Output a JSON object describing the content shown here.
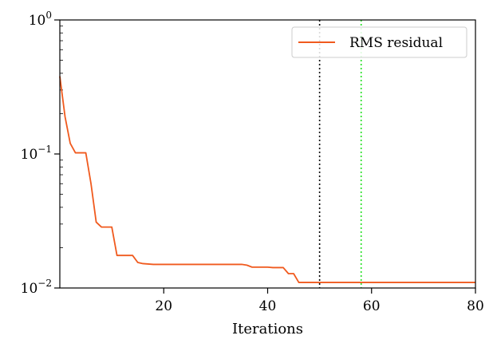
{
  "chart_data": {
    "type": "line",
    "title": "",
    "xlabel": "Iterations",
    "ylabel": "",
    "xlim": [
      0,
      80
    ],
    "ylim": [
      0.01,
      1
    ],
    "yscale": "log",
    "grid": false,
    "legend_position": "top-right",
    "x_ticks": [
      {
        "value": 20,
        "label": "20"
      },
      {
        "value": 40,
        "label": "40"
      },
      {
        "value": 60,
        "label": "60"
      },
      {
        "value": 80,
        "label": "80"
      }
    ],
    "y_ticks": [
      {
        "value": 0.01,
        "base": "10",
        "exp": "−2"
      },
      {
        "value": 0.1,
        "base": "10",
        "exp": "−1"
      },
      {
        "value": 1,
        "base": "10",
        "exp": "0"
      }
    ],
    "series": [
      {
        "name": "RMS residual",
        "color": "#f05a1e",
        "x": [
          0,
          1,
          2,
          3,
          4,
          5,
          6,
          7,
          8,
          9,
          10,
          11,
          12,
          13,
          14,
          15,
          16,
          17,
          18,
          19,
          20,
          25,
          30,
          35,
          36,
          37,
          38,
          39,
          40,
          41,
          42,
          43,
          44,
          45,
          46,
          47,
          48,
          50,
          55,
          60,
          65,
          70,
          75,
          80
        ],
        "values": [
          0.38,
          0.19,
          0.12,
          0.102,
          0.102,
          0.102,
          0.06,
          0.031,
          0.0285,
          0.0285,
          0.0285,
          0.0175,
          0.0175,
          0.0175,
          0.0175,
          0.0155,
          0.0152,
          0.0151,
          0.015,
          0.015,
          0.015,
          0.015,
          0.015,
          0.015,
          0.0148,
          0.0143,
          0.0143,
          0.0143,
          0.0143,
          0.0142,
          0.0142,
          0.0142,
          0.0128,
          0.0128,
          0.011,
          0.011,
          0.011,
          0.011,
          0.011,
          0.011,
          0.011,
          0.011,
          0.011,
          0.011
        ]
      }
    ],
    "vertical_lines": [
      {
        "x": 50,
        "color": "#000000",
        "style": "dotted"
      },
      {
        "x": 58,
        "color": "#22e022",
        "style": "dotted"
      }
    ]
  }
}
